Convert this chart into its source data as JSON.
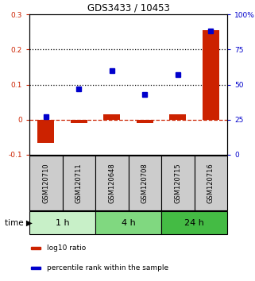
{
  "title": "GDS3433 / 10453",
  "samples": [
    "GSM120710",
    "GSM120711",
    "GSM120648",
    "GSM120708",
    "GSM120715",
    "GSM120716"
  ],
  "log10_ratio": [
    -0.065,
    -0.01,
    0.015,
    -0.01,
    0.015,
    0.255
  ],
  "percentile_rank": [
    27,
    47,
    60,
    43,
    57,
    88
  ],
  "ylim_left": [
    -0.1,
    0.3
  ],
  "ylim_right": [
    0,
    100
  ],
  "yticks_left": [
    -0.1,
    0.0,
    0.1,
    0.2,
    0.3
  ],
  "yticks_right": [
    0,
    25,
    50,
    75,
    100
  ],
  "ytick_labels_left": [
    "-0.1",
    "0",
    "0.1",
    "0.2",
    "0.3"
  ],
  "ytick_labels_right": [
    "0",
    "25",
    "50",
    "75",
    "100%"
  ],
  "hlines_dotted": [
    0.1,
    0.2
  ],
  "hline_dashed_color": "#cc2200",
  "time_groups": [
    {
      "label": "1 h",
      "start": 0,
      "end": 2,
      "color": "#c8f0c8"
    },
    {
      "label": "4 h",
      "start": 2,
      "end": 4,
      "color": "#80d880"
    },
    {
      "label": "24 h",
      "start": 4,
      "end": 6,
      "color": "#44bb44"
    }
  ],
  "bar_color": "#cc2200",
  "square_color": "#0000cc",
  "bar_width": 0.5,
  "legend_items": [
    {
      "label": "log10 ratio",
      "color": "#cc2200"
    },
    {
      "label": "percentile rank within the sample",
      "color": "#0000cc"
    }
  ],
  "left_axis_color": "#cc2200",
  "right_axis_color": "#0000cc",
  "time_label": "time ▶",
  "sample_box_color": "#cccccc",
  "figsize": [
    3.21,
    3.54
  ],
  "dpi": 100
}
